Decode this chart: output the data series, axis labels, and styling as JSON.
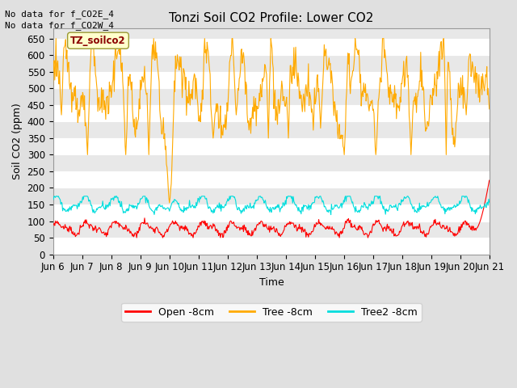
{
  "title": "Tonzi Soil CO2 Profile: Lower CO2",
  "xlabel": "Time",
  "ylabel": "Soil CO2 (ppm)",
  "annotations": [
    "No data for f_CO2E_4",
    "No data for f_CO2W_4"
  ],
  "watermark": "TZ_soilco2",
  "legend": [
    "Open -8cm",
    "Tree -8cm",
    "Tree2 -8cm"
  ],
  "legend_colors": [
    "#ff0000",
    "#ffaa00",
    "#00dddd"
  ],
  "line_colors": [
    "#ff0000",
    "#ffaa00",
    "#00dddd"
  ],
  "ylim": [
    0,
    680
  ],
  "yticks": [
    0,
    50,
    100,
    150,
    200,
    250,
    300,
    350,
    400,
    450,
    500,
    550,
    600,
    650
  ],
  "bg_color": "#e0e0e0",
  "plot_bg_color": "#e8e8e8",
  "grid_color": "#ffffff",
  "title_fontsize": 11,
  "label_fontsize": 9,
  "tick_fontsize": 8.5
}
